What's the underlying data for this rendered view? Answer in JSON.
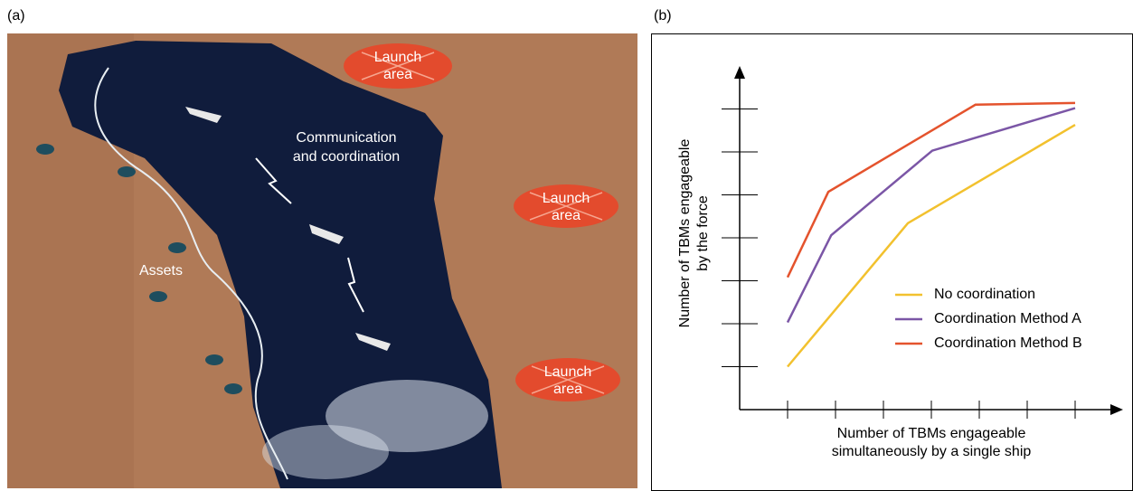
{
  "panel_a": {
    "label": "(a)",
    "launch_areas": [
      [
        "Launch",
        "area"
      ],
      [
        "Launch",
        "area"
      ],
      [
        "Launch",
        "area"
      ]
    ],
    "communication": [
      "Communication",
      "and coordination"
    ],
    "assets": "Assets"
  },
  "chart_data": {
    "type": "line",
    "panel_label": "(b)",
    "x_label": [
      "Number of TBMs engageable",
      "simultaneously by a single ship"
    ],
    "y_label": [
      "Number of TBMs engageable",
      "by the force"
    ],
    "xlim": [
      0,
      8
    ],
    "ylim": [
      0,
      8
    ],
    "xticks": [
      1,
      2,
      3,
      4,
      5,
      6,
      7
    ],
    "yticks": [
      1,
      2,
      3,
      4,
      5,
      6,
      7
    ],
    "series": [
      {
        "name": "No coordination",
        "color": "#f2c12e",
        "x": [
          1,
          3.51,
          7
        ],
        "values": [
          1,
          4.34,
          6.63
        ]
      },
      {
        "name": "Coordination Method A",
        "color": "#7b56a6",
        "x": [
          1,
          1.91,
          4.02,
          7
        ],
        "values": [
          2.03,
          4.06,
          6.03,
          7.02
        ]
      },
      {
        "name": "Coordination Method B",
        "color": "#e4532d",
        "x": [
          1,
          1.85,
          4.92,
          7
        ],
        "values": [
          3.08,
          5.07,
          7.1,
          7.14
        ]
      }
    ]
  }
}
